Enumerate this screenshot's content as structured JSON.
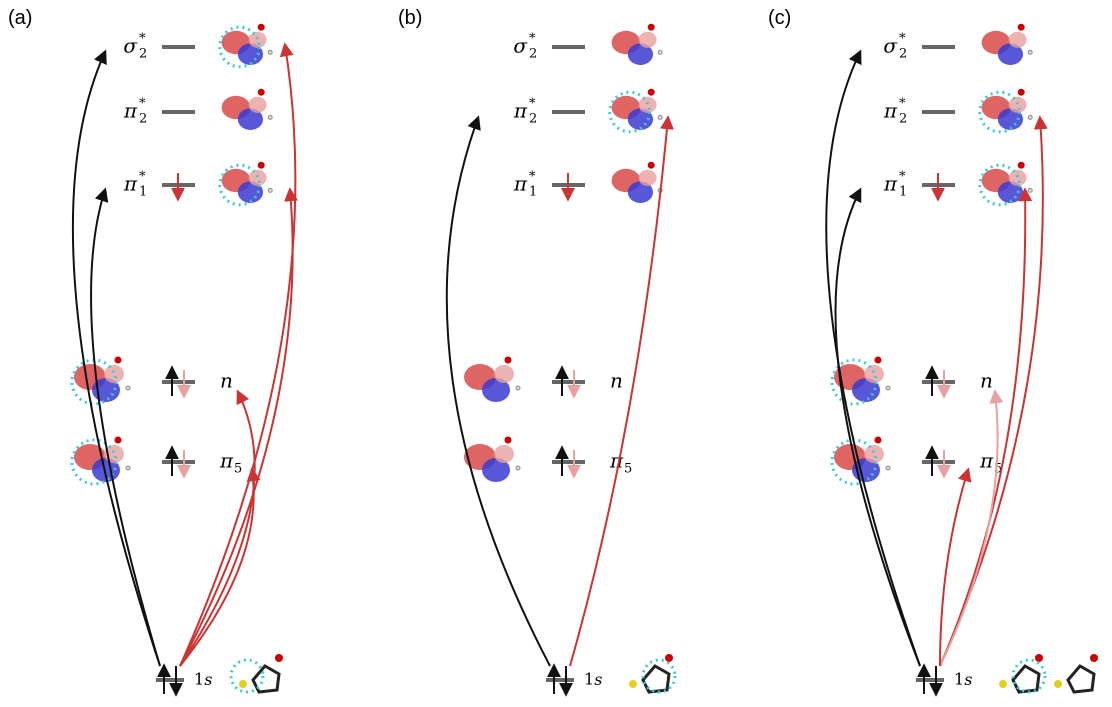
{
  "panels": [
    {
      "label": "(a)"
    },
    {
      "label": "(b)"
    },
    {
      "label": "(c)"
    }
  ],
  "levels": {
    "sigma2": {
      "symbol": "σ",
      "sub": "2",
      "sup": "*"
    },
    "pi2": {
      "symbol": "π",
      "sub": "2",
      "sup": "*"
    },
    "pi1": {
      "symbol": "π",
      "sub": "1",
      "sup": "*"
    },
    "n": {
      "symbol": "n"
    },
    "pi5": {
      "symbol": "π",
      "sub": "5"
    },
    "core": {
      "symbol": "1",
      "italic": "s"
    }
  }
}
